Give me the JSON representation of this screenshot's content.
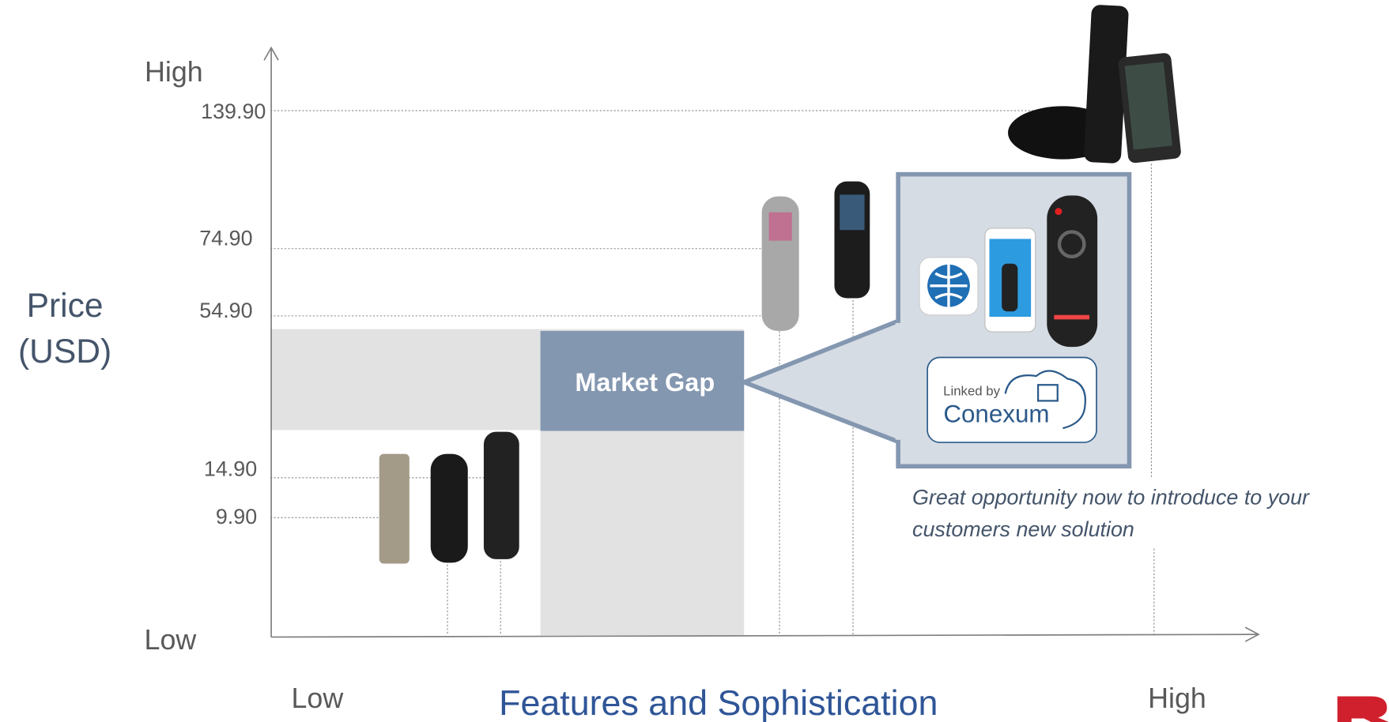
{
  "axis": {
    "y_title": [
      "Price",
      "(USD)"
    ],
    "y_high": "High",
    "y_low": "Low",
    "x_low": "Low",
    "x_high": "High",
    "x_title": "Features and Sophistication"
  },
  "price_levels": [
    "139.90",
    "74.90",
    "54.90",
    "14.90",
    "9.90"
  ],
  "gap_label": "Market Gap",
  "callout": {
    "linked_by": "Linked by",
    "brand": "Conexum"
  },
  "note": [
    "Great opportunity now to introduce to your",
    "customers new solution"
  ]
}
